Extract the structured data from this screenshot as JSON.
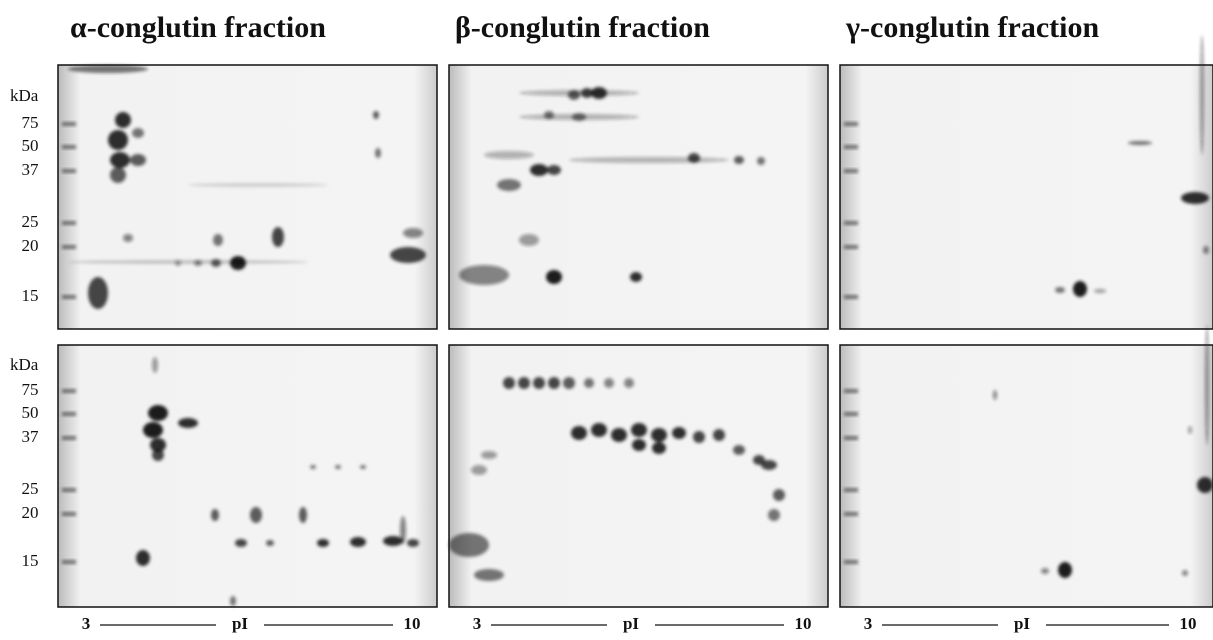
{
  "columns": [
    {
      "title": "α-conglutin fraction",
      "axis": {
        "start": "3",
        "label": "pI",
        "end": "10"
      }
    },
    {
      "title": "β-conglutin fraction",
      "axis": {
        "start": "3",
        "label": "pI",
        "end": "10"
      }
    },
    {
      "title": "γ-conglutin fraction",
      "axis": {
        "start": "3",
        "label": "pI",
        "end": "10"
      }
    }
  ],
  "rows": [
    {
      "unit": "kDa",
      "markers": [
        "75",
        "50",
        "37",
        "25",
        "20",
        "15"
      ]
    },
    {
      "unit": "kDa",
      "markers": [
        "75",
        "50",
        "37",
        "25",
        "20",
        "15"
      ]
    }
  ]
}
